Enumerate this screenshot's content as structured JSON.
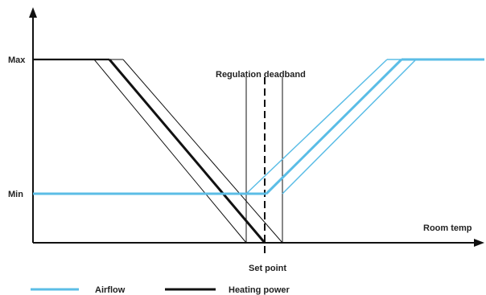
{
  "axes": {
    "y_max_label": "Max",
    "y_min_label": "Min",
    "x_label": "Room temp"
  },
  "annotations": {
    "deadband": "Regulation deadband",
    "set_point": "Set point"
  },
  "legend": {
    "airflow": "Airflow",
    "heating_power": "Heating power"
  },
  "colors": {
    "airflow": "#5bbde6",
    "heating_power": "#111111",
    "axis": "#111111"
  }
}
